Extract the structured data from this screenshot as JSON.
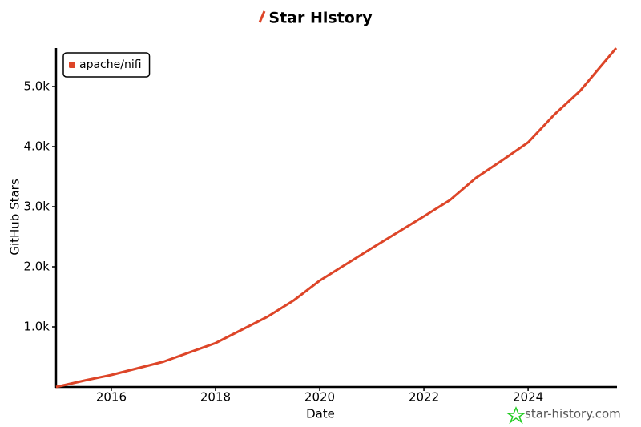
{
  "chart_data": {
    "type": "line",
    "title": "Star History",
    "xlabel": "Date",
    "ylabel": "GitHub Stars",
    "watermark": "star-history.com",
    "x": [
      2014.94,
      2015.5,
      2016,
      2017,
      2018,
      2019,
      2019.5,
      2020,
      2021,
      2022,
      2022.5,
      2023,
      2023.5,
      2024,
      2024.5,
      2025,
      2025.69
    ],
    "series": [
      {
        "name": "apache/nifi",
        "color": "#dd4528",
        "values": [
          0,
          110,
          200,
          420,
          730,
          1170,
          1440,
          1770,
          2310,
          2840,
          3110,
          3480,
          3770,
          4070,
          4530,
          4930,
          5640
        ]
      }
    ],
    "xlim": [
      2014.94,
      2025.69
    ],
    "xticks": [
      2016,
      2018,
      2020,
      2022,
      2024
    ],
    "ylim": [
      0,
      5640
    ],
    "yticks": [
      {
        "value": 1000,
        "label": "1.0k"
      },
      {
        "value": 2000,
        "label": "2.0k"
      },
      {
        "value": 3000,
        "label": "3.0k"
      },
      {
        "value": 4000,
        "label": "4.0k"
      },
      {
        "value": 5000,
        "label": "5.0k"
      }
    ],
    "legend": "upper left",
    "grid": false
  }
}
